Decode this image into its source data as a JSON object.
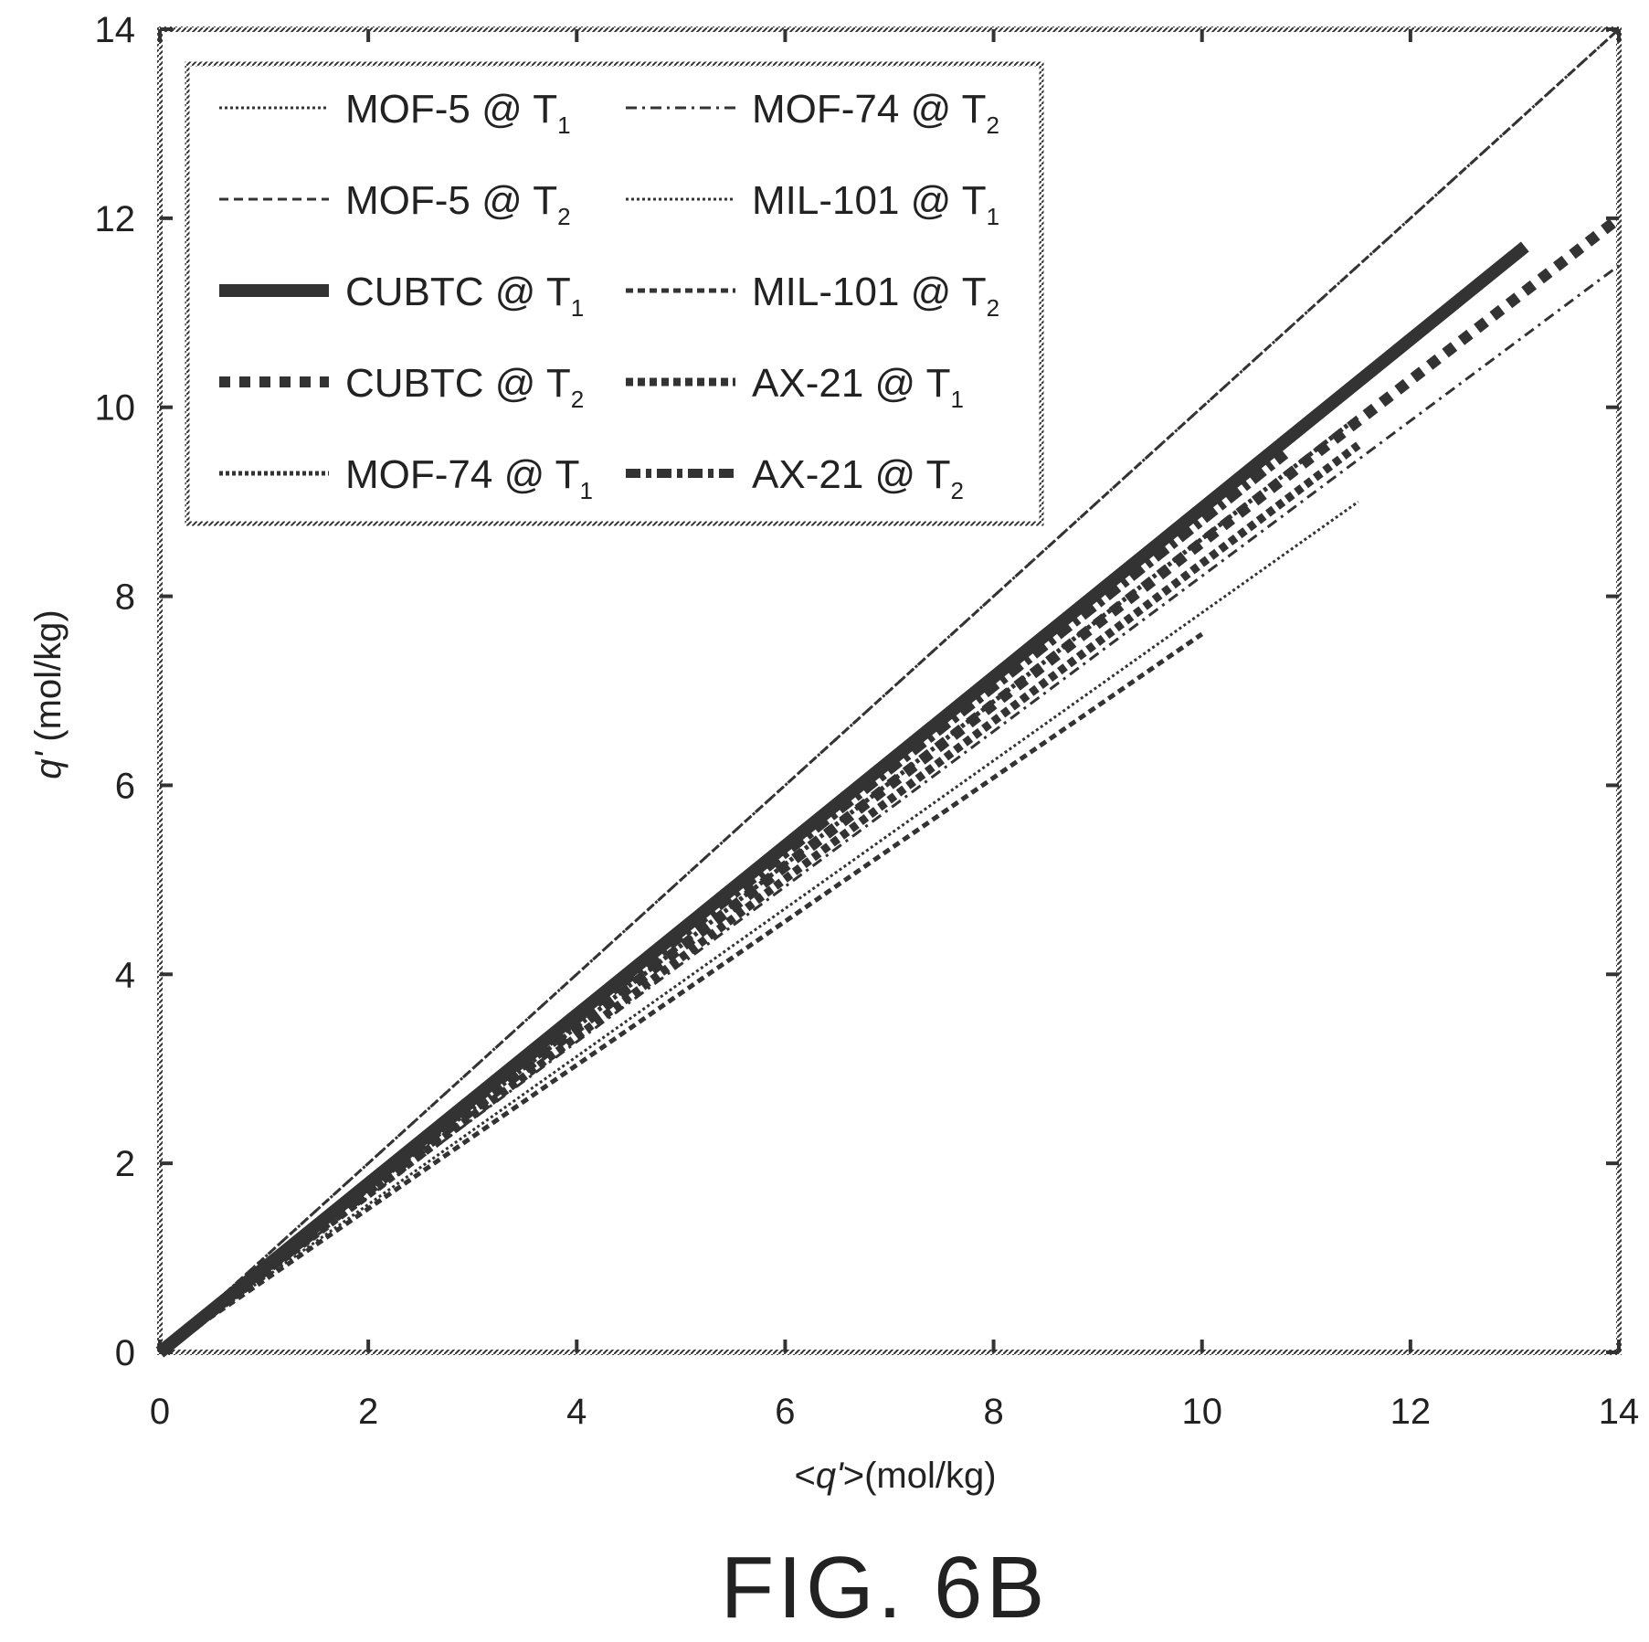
{
  "chart_data": {
    "type": "line",
    "xlabel_parts": [
      "<",
      "q'",
      ">(mol/kg)"
    ],
    "ylabel_parts": [
      "q'",
      " (mol/kg)"
    ],
    "xlim": [
      0,
      14
    ],
    "ylim": [
      0,
      14
    ],
    "xticks": [
      0,
      2,
      4,
      6,
      8,
      10,
      12,
      14
    ],
    "yticks": [
      0,
      2,
      4,
      6,
      8,
      10,
      12,
      14
    ],
    "grid": false,
    "legend_position": "top-left",
    "series": [
      {
        "name": "MOF-5 @ T",
        "sub": "1",
        "style": "dotted-thin",
        "x": [
          0,
          14
        ],
        "y": [
          0,
          14.0
        ]
      },
      {
        "name": "MOF-5 @ T",
        "sub": "2",
        "style": "dashed-thin",
        "x": [
          0,
          14
        ],
        "y": [
          0,
          14.0
        ]
      },
      {
        "name": "CUBTC @ T",
        "sub": "1",
        "style": "solid-thick",
        "x": [
          0,
          13.1
        ],
        "y": [
          0,
          11.7
        ]
      },
      {
        "name": "CUBTC @ T",
        "sub": "2",
        "style": "dashed-thick",
        "x": [
          0,
          14
        ],
        "y": [
          0,
          12.0
        ]
      },
      {
        "name": "MOF-74 @ T",
        "sub": "1",
        "style": "dotted-medium",
        "x": [
          0,
          11.5
        ],
        "y": [
          0,
          9.9
        ]
      },
      {
        "name": "MOF-74 @ T",
        "sub": "2",
        "style": "dashdot-thin",
        "x": [
          0,
          14
        ],
        "y": [
          0,
          11.5
        ]
      },
      {
        "name": "MIL-101 @ T",
        "sub": "1",
        "style": "dotted-thin",
        "x": [
          0,
          11.5
        ],
        "y": [
          0,
          9.0
        ]
      },
      {
        "name": "MIL-101 @ T",
        "sub": "2",
        "style": "dashed-medium",
        "x": [
          0,
          10.0
        ],
        "y": [
          0,
          7.6
        ]
      },
      {
        "name": "AX-21 @ T",
        "sub": "1",
        "style": "dotted-heavy",
        "x": [
          0,
          11.5
        ],
        "y": [
          0,
          9.6
        ]
      },
      {
        "name": "AX-21 @ T",
        "sub": "2",
        "style": "dashdot-heavy",
        "x": [
          0,
          10.8
        ],
        "y": [
          0,
          9.5
        ]
      }
    ]
  },
  "figure_label": "FIG. 6B"
}
